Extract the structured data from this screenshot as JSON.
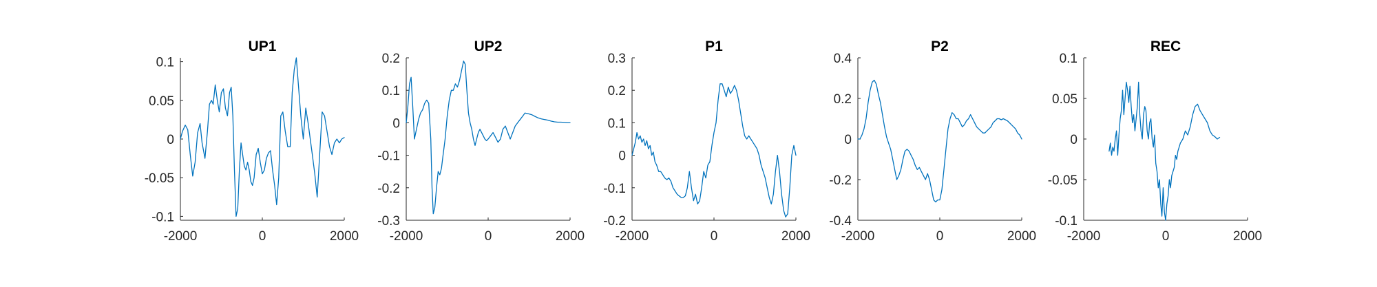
{
  "chart_data": [
    {
      "type": "line",
      "title": "UP1",
      "xlim": [
        -2000,
        2000
      ],
      "ylim": [
        -0.105,
        0.105
      ],
      "xticks": [
        -2000,
        0,
        2000
      ],
      "xtick_labels": [
        "-2000",
        "0",
        "2000"
      ],
      "yticks": [
        0.1,
        0.05,
        0,
        -0.05,
        -0.1
      ],
      "ytick_labels": [
        "0.1",
        "0.05",
        "0",
        "-0.05",
        "-0.1"
      ],
      "color": "#0072BD",
      "series": [
        {
          "name": "UP1",
          "x": [
            -2000,
            -1950,
            -1880,
            -1820,
            -1760,
            -1700,
            -1640,
            -1580,
            -1520,
            -1470,
            -1400,
            -1340,
            -1290,
            -1240,
            -1200,
            -1150,
            -1100,
            -1050,
            -1000,
            -950,
            -900,
            -850,
            -800,
            -760,
            -720,
            -680,
            -640,
            -600,
            -560,
            -520,
            -480,
            -440,
            -400,
            -360,
            -320,
            -280,
            -240,
            -200,
            -150,
            -100,
            -50,
            0,
            50,
            100,
            150,
            200,
            250,
            300,
            350,
            400,
            450,
            500,
            560,
            620,
            680,
            730,
            780,
            830,
            880,
            940,
            1000,
            1060,
            1120,
            1170,
            1220,
            1280,
            1340,
            1400,
            1460,
            1520,
            1580,
            1640,
            1700,
            1760,
            1820,
            1880,
            1940,
            2000
          ],
          "y": [
            0.0,
            0.01,
            0.018,
            0.012,
            -0.02,
            -0.048,
            -0.03,
            0.008,
            0.02,
            -0.005,
            -0.025,
            0.01,
            0.045,
            0.05,
            0.045,
            0.07,
            0.05,
            0.035,
            0.06,
            0.065,
            0.04,
            0.03,
            0.06,
            0.067,
            0.03,
            -0.04,
            -0.1,
            -0.09,
            -0.04,
            -0.005,
            -0.02,
            -0.035,
            -0.04,
            -0.03,
            -0.04,
            -0.055,
            -0.06,
            -0.05,
            -0.02,
            -0.012,
            -0.03,
            -0.045,
            -0.04,
            -0.025,
            -0.018,
            -0.015,
            -0.04,
            -0.06,
            -0.085,
            -0.05,
            0.03,
            0.035,
            0.01,
            -0.01,
            -0.01,
            0.06,
            0.09,
            0.105,
            0.07,
            0.03,
            0.0,
            0.04,
            0.02,
            0.0,
            -0.02,
            -0.045,
            -0.075,
            -0.02,
            0.035,
            0.03,
            0.01,
            -0.01,
            -0.02,
            -0.005,
            0.0,
            -0.005,
            0.0,
            0.002
          ]
        }
      ]
    },
    {
      "type": "line",
      "title": "UP2",
      "xlim": [
        -2000,
        2000
      ],
      "ylim": [
        -0.3,
        0.2
      ],
      "xticks": [
        -2000,
        0,
        2000
      ],
      "xtick_labels": [
        "-2000",
        "0",
        "2000"
      ],
      "yticks": [
        0.2,
        0.1,
        0,
        -0.1,
        -0.2,
        -0.3
      ],
      "ytick_labels": [
        "0.2",
        "0.1",
        "0",
        "-0.1",
        "-0.2",
        "-0.3"
      ],
      "color": "#0072BD",
      "series": [
        {
          "name": "UP2",
          "x": [
            -2000,
            -1960,
            -1920,
            -1880,
            -1840,
            -1800,
            -1750,
            -1700,
            -1650,
            -1600,
            -1550,
            -1500,
            -1450,
            -1400,
            -1370,
            -1340,
            -1300,
            -1260,
            -1220,
            -1180,
            -1140,
            -1100,
            -1050,
            -1000,
            -950,
            -900,
            -850,
            -800,
            -750,
            -700,
            -650,
            -600,
            -560,
            -520,
            -480,
            -440,
            -400,
            -360,
            -320,
            -280,
            -240,
            -200,
            -160,
            -120,
            -80,
            -40,
            0,
            60,
            120,
            180,
            240,
            300,
            360,
            420,
            480,
            540,
            600,
            660,
            720,
            780,
            840,
            900,
            980,
            1060,
            1140,
            1220,
            1300,
            1380,
            1460,
            1540,
            1620,
            1700,
            1780,
            1860,
            1940,
            2000
          ],
          "y": [
            0.0,
            0.05,
            0.12,
            0.14,
            0.05,
            -0.05,
            -0.02,
            0.01,
            0.03,
            0.04,
            0.06,
            0.07,
            0.06,
            -0.05,
            -0.2,
            -0.28,
            -0.26,
            -0.2,
            -0.15,
            -0.16,
            -0.14,
            -0.1,
            -0.05,
            0.02,
            0.07,
            0.1,
            0.1,
            0.12,
            0.11,
            0.13,
            0.16,
            0.19,
            0.18,
            0.1,
            0.03,
            0.0,
            -0.02,
            -0.05,
            -0.07,
            -0.05,
            -0.03,
            -0.02,
            -0.03,
            -0.04,
            -0.05,
            -0.055,
            -0.05,
            -0.04,
            -0.03,
            -0.045,
            -0.06,
            -0.05,
            -0.02,
            -0.01,
            -0.03,
            -0.05,
            -0.03,
            -0.01,
            0.0,
            0.01,
            0.02,
            0.03,
            0.028,
            0.025,
            0.02,
            0.015,
            0.012,
            0.01,
            0.008,
            0.005,
            0.003,
            0.002,
            0.002,
            0.001,
            0.0,
            0.0
          ]
        }
      ]
    },
    {
      "type": "line",
      "title": "P1",
      "xlim": [
        -2000,
        2000
      ],
      "ylim": [
        -0.2,
        0.3
      ],
      "xticks": [
        -2000,
        0,
        2000
      ],
      "xtick_labels": [
        "-2000",
        "0",
        "2000"
      ],
      "yticks": [
        0.3,
        0.2,
        0.1,
        0,
        -0.1,
        -0.2
      ],
      "ytick_labels": [
        "0.3",
        "0.2",
        "0.1",
        "0",
        "-0.1",
        "-0.2"
      ],
      "color": "#0072BD",
      "series": [
        {
          "name": "P1",
          "x": [
            -2000,
            -1960,
            -1920,
            -1880,
            -1840,
            -1800,
            -1760,
            -1720,
            -1680,
            -1640,
            -1600,
            -1560,
            -1520,
            -1480,
            -1440,
            -1400,
            -1350,
            -1300,
            -1250,
            -1200,
            -1150,
            -1100,
            -1050,
            -1000,
            -950,
            -900,
            -850,
            -800,
            -750,
            -700,
            -650,
            -600,
            -550,
            -500,
            -450,
            -400,
            -350,
            -300,
            -250,
            -200,
            -150,
            -100,
            -50,
            0,
            50,
            100,
            150,
            200,
            250,
            300,
            350,
            400,
            450,
            500,
            550,
            600,
            650,
            700,
            750,
            800,
            850,
            900,
            950,
            1000,
            1050,
            1100,
            1150,
            1200,
            1250,
            1300,
            1350,
            1400,
            1450,
            1500,
            1550,
            1600,
            1650,
            1700,
            1750,
            1800,
            1850,
            1900,
            1950,
            2000
          ],
          "y": [
            0.0,
            0.02,
            0.04,
            0.07,
            0.05,
            0.06,
            0.04,
            0.05,
            0.03,
            0.045,
            0.02,
            0.03,
            0.0,
            0.01,
            -0.02,
            -0.03,
            -0.05,
            -0.05,
            -0.06,
            -0.07,
            -0.075,
            -0.07,
            -0.08,
            -0.1,
            -0.11,
            -0.12,
            -0.125,
            -0.13,
            -0.13,
            -0.125,
            -0.1,
            -0.05,
            -0.1,
            -0.14,
            -0.12,
            -0.15,
            -0.14,
            -0.1,
            -0.05,
            -0.07,
            -0.03,
            -0.02,
            0.03,
            0.07,
            0.1,
            0.17,
            0.22,
            0.22,
            0.2,
            0.18,
            0.21,
            0.19,
            0.2,
            0.215,
            0.2,
            0.17,
            0.13,
            0.09,
            0.06,
            0.05,
            0.06,
            0.05,
            0.04,
            0.03,
            0.02,
            0.0,
            -0.03,
            -0.05,
            -0.07,
            -0.1,
            -0.13,
            -0.15,
            -0.12,
            -0.05,
            0.0,
            -0.05,
            -0.12,
            -0.17,
            -0.19,
            -0.18,
            -0.1,
            0.0,
            0.03,
            0.0
          ]
        }
      ]
    },
    {
      "type": "line",
      "title": "P2",
      "xlim": [
        -2000,
        2000
      ],
      "ylim": [
        -0.4,
        0.4
      ],
      "xticks": [
        -2000,
        0,
        2000
      ],
      "xtick_labels": [
        "-2000",
        "0",
        "2000"
      ],
      "yticks": [
        0.4,
        0.2,
        0,
        -0.2,
        -0.4
      ],
      "ytick_labels": [
        "0.4",
        "0.2",
        "0",
        "-0.2",
        "-0.4"
      ],
      "color": "#0072BD",
      "series": [
        {
          "name": "P2",
          "x": [
            -2000,
            -1950,
            -1900,
            -1850,
            -1800,
            -1750,
            -1700,
            -1650,
            -1600,
            -1550,
            -1500,
            -1450,
            -1400,
            -1350,
            -1300,
            -1250,
            -1200,
            -1150,
            -1100,
            -1050,
            -1000,
            -950,
            -900,
            -850,
            -800,
            -750,
            -700,
            -650,
            -600,
            -550,
            -500,
            -450,
            -400,
            -350,
            -300,
            -250,
            -200,
            -150,
            -100,
            -50,
            0,
            50,
            100,
            150,
            200,
            250,
            300,
            350,
            400,
            450,
            500,
            550,
            600,
            650,
            700,
            750,
            800,
            850,
            900,
            950,
            1000,
            1050,
            1100,
            1150,
            1200,
            1250,
            1300,
            1350,
            1400,
            1450,
            1500,
            1550,
            1600,
            1650,
            1700,
            1750,
            1800,
            1850,
            1900,
            1950,
            2000
          ],
          "y": [
            0.0,
            0.0,
            0.02,
            0.05,
            0.1,
            0.18,
            0.24,
            0.28,
            0.29,
            0.27,
            0.22,
            0.18,
            0.12,
            0.06,
            0.01,
            -0.02,
            -0.05,
            -0.1,
            -0.15,
            -0.2,
            -0.18,
            -0.15,
            -0.1,
            -0.06,
            -0.05,
            -0.06,
            -0.08,
            -0.1,
            -0.13,
            -0.15,
            -0.14,
            -0.16,
            -0.18,
            -0.2,
            -0.17,
            -0.2,
            -0.25,
            -0.3,
            -0.31,
            -0.3,
            -0.3,
            -0.25,
            -0.15,
            -0.05,
            0.05,
            0.1,
            0.13,
            0.12,
            0.1,
            0.1,
            0.08,
            0.06,
            0.07,
            0.09,
            0.1,
            0.12,
            0.1,
            0.08,
            0.06,
            0.05,
            0.04,
            0.03,
            0.03,
            0.04,
            0.05,
            0.06,
            0.08,
            0.09,
            0.1,
            0.1,
            0.095,
            0.1,
            0.095,
            0.09,
            0.08,
            0.07,
            0.06,
            0.05,
            0.03,
            0.02,
            0.0
          ]
        }
      ]
    },
    {
      "type": "line",
      "title": "REC",
      "xlim": [
        -2000,
        2000
      ],
      "ylim": [
        -0.1,
        0.1
      ],
      "xticks": [
        -2000,
        0,
        2000
      ],
      "xtick_labels": [
        "-2000",
        "0",
        "2000"
      ],
      "yticks": [
        0.1,
        0.05,
        0,
        -0.05,
        -0.1
      ],
      "ytick_labels": [
        "0.1",
        "0.05",
        "0",
        "-0.05",
        "-0.1"
      ],
      "color": "#0072BD",
      "series": [
        {
          "name": "REC",
          "x": [
            -1380,
            -1350,
            -1320,
            -1290,
            -1260,
            -1230,
            -1200,
            -1170,
            -1140,
            -1110,
            -1080,
            -1050,
            -1020,
            -990,
            -960,
            -930,
            -900,
            -870,
            -840,
            -810,
            -780,
            -750,
            -720,
            -690,
            -660,
            -630,
            -600,
            -570,
            -540,
            -510,
            -480,
            -450,
            -420,
            -390,
            -360,
            -330,
            -300,
            -270,
            -240,
            -210,
            -180,
            -150,
            -120,
            -90,
            -60,
            -30,
            0,
            30,
            60,
            90,
            120,
            150,
            180,
            210,
            240,
            270,
            300,
            360,
            420,
            480,
            540,
            600,
            660,
            720,
            780,
            840,
            900,
            960,
            1020,
            1080,
            1140,
            1200,
            1260,
            1320
          ],
          "y": [
            -0.015,
            -0.005,
            -0.02,
            -0.01,
            -0.015,
            0.0,
            0.01,
            -0.02,
            0.005,
            0.025,
            0.035,
            0.06,
            0.03,
            0.05,
            0.07,
            0.06,
            0.045,
            0.065,
            0.04,
            0.02,
            0.03,
            0.01,
            0.025,
            0.04,
            0.07,
            0.03,
            0.01,
            0.0,
            0.03,
            0.04,
            0.035,
            0.01,
            0.0,
            0.02,
            0.025,
            0.0,
            -0.01,
            0.005,
            -0.03,
            -0.04,
            -0.06,
            -0.05,
            -0.08,
            -0.095,
            -0.06,
            -0.09,
            -0.1,
            -0.08,
            -0.07,
            -0.05,
            -0.06,
            -0.045,
            -0.04,
            -0.035,
            -0.02,
            -0.025,
            -0.015,
            -0.005,
            0.0,
            0.01,
            0.005,
            0.015,
            0.03,
            0.04,
            0.043,
            0.035,
            0.03,
            0.025,
            0.02,
            0.01,
            0.005,
            0.003,
            0.0,
            0.002
          ]
        }
      ]
    }
  ]
}
